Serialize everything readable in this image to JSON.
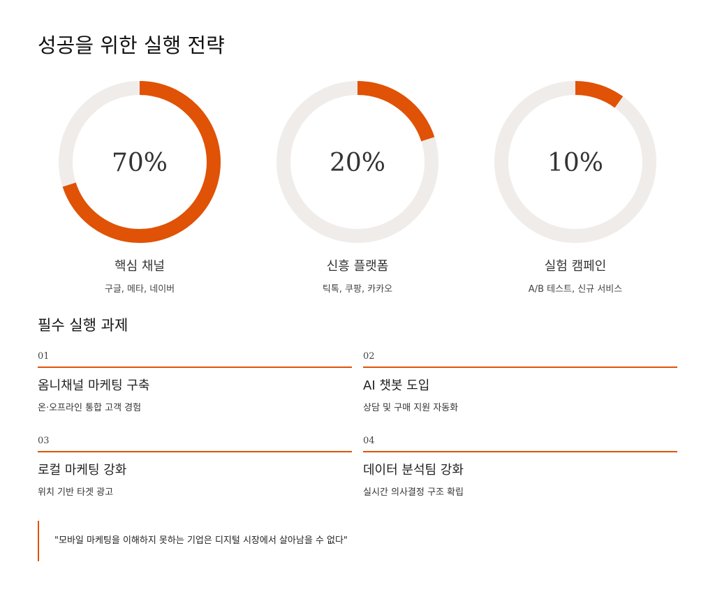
{
  "header": {
    "title": "성공을 위한 실행 전략"
  },
  "rings": {
    "values": [
      70,
      20,
      10
    ],
    "value_labels": [
      "70%",
      "20%",
      "10%"
    ],
    "titles": [
      "핵심 채널",
      "신흥 플랫폼",
      "실험 캠페인"
    ],
    "descriptions": [
      "구글, 메타, 네이버",
      "틱톡, 쿠팡, 카카오",
      "A/B 테스트, 신규 서비스"
    ],
    "color": "#e05206",
    "track_color": "#f0ecea"
  },
  "tasks": {
    "title": "필수 실행 과제",
    "items": [
      {
        "number": "01",
        "title": "옴니채널 마케팅 구축",
        "description": "온·오프라인 통합 고객 경험"
      },
      {
        "number": "02",
        "title": "AI 챗봇 도입",
        "description": "상담 및 구매 지원 자동화"
      },
      {
        "number": "03",
        "title": "로컬 마케팅 강화",
        "description": "위치 기반 타겟 광고"
      },
      {
        "number": "04",
        "title": "데이터 분석팀 강화",
        "description": "실시간 의사결정 구조 확립"
      }
    ]
  },
  "quote": "\"모바일 마케팅을 이해하지 못하는 기업은 디지털 시장에서 살아남을 수 없다\""
}
